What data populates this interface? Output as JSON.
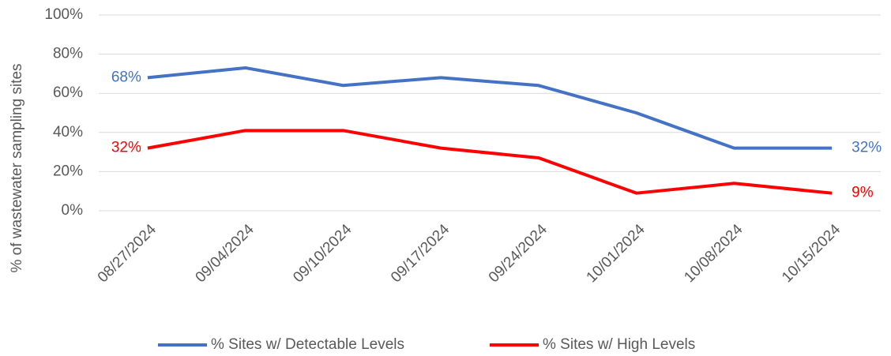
{
  "chart_data": {
    "type": "line",
    "y_label": "% of wastewater sampling sites",
    "categories": [
      "08/27/2024",
      "09/04/2024",
      "09/10/2024",
      "09/17/2024",
      "09/24/2024",
      "10/01/2024",
      "10/08/2024",
      "10/15/2024"
    ],
    "series": [
      {
        "name": "% Sites w/ Detectable Levels",
        "color": "#4472c4",
        "values": [
          68,
          73,
          64,
          68,
          64,
          50,
          32,
          32
        ],
        "value_labels": [
          "68%",
          null,
          null,
          null,
          null,
          null,
          null,
          "32%"
        ]
      },
      {
        "name": "% Sites w/ High Levels",
        "color": "#ff0000",
        "values": [
          32,
          41,
          41,
          32,
          27,
          9,
          14,
          9
        ],
        "value_labels": [
          "32%",
          null,
          null,
          null,
          null,
          null,
          null,
          "9%"
        ]
      }
    ],
    "ylim": [
      0,
      100
    ],
    "yticks": [
      {
        "value": 0,
        "label": "0%"
      },
      {
        "value": 20,
        "label": "20%"
      },
      {
        "value": 40,
        "label": "40%"
      },
      {
        "value": 60,
        "label": "60%"
      },
      {
        "value": 80,
        "label": "80%"
      },
      {
        "value": 100,
        "label": "100%"
      }
    ],
    "grid": true,
    "legend": "bottom"
  }
}
